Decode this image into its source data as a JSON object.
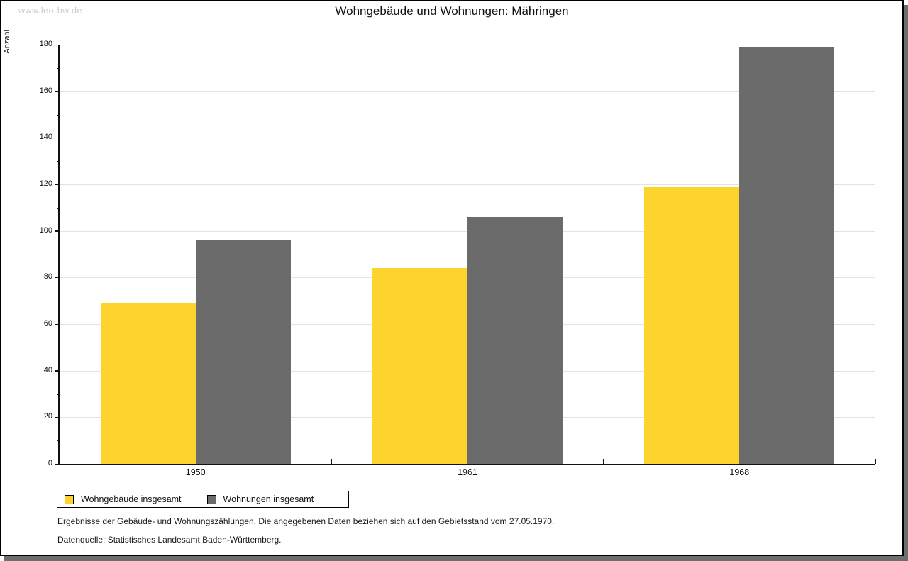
{
  "window": {
    "watermark": "www.leo-bw.de",
    "shadow_color": "#6e6e6e"
  },
  "chart_data": {
    "type": "bar",
    "title": "Wohngebäude und Wohnungen: Mähringen",
    "xlabel": "",
    "ylabel": "Anzahl",
    "categories": [
      "1950",
      "1961",
      "1968"
    ],
    "series": [
      {
        "name": "Wohngebäude insgesamt",
        "color": "#FCD42D",
        "values": [
          69,
          84,
          119
        ]
      },
      {
        "name": "Wohnungen insgesamt",
        "color": "#6B6B6B",
        "values": [
          96,
          106,
          179
        ]
      }
    ],
    "ylim": [
      0,
      180
    ],
    "ytick_step": 20,
    "y_minor_tick_step": 10,
    "grid": "horizontal-major",
    "gridline_color": "#e3e3e3",
    "legend_position": "bottom-left"
  },
  "footnotes": {
    "line1": "Ergebnisse der Gebäude- und Wohnungszählungen. Die angegebenen Daten beziehen sich auf den Gebietsstand vom 27.05.1970.",
    "line2": "Datenquelle: Statistisches Landesamt Baden-Württemberg."
  }
}
